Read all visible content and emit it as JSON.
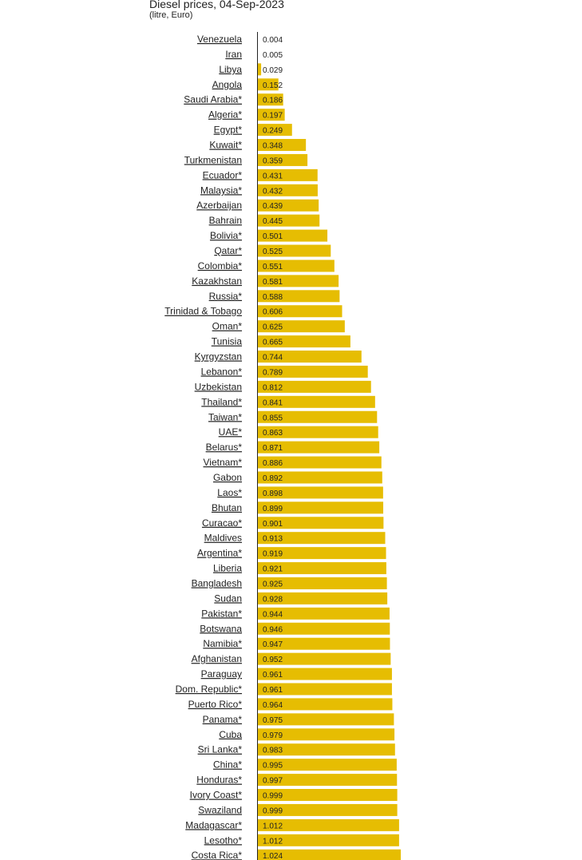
{
  "chart_data": {
    "type": "bar",
    "orientation": "horizontal",
    "title": "Diesel prices, 04-Sep-2023",
    "subtitle": "(litre, Euro)",
    "bar_color": "#e6bd02",
    "categories": [
      "Venezuela",
      "Iran",
      "Libya",
      "Angola",
      "Saudi Arabia*",
      "Algeria*",
      "Egypt*",
      "Kuwait*",
      "Turkmenistan",
      "Ecuador*",
      "Malaysia*",
      "Azerbaijan",
      "Bahrain",
      "Bolivia*",
      "Qatar*",
      "Colombia*",
      "Kazakhstan",
      "Russia*",
      "Trinidad & Tobago",
      "Oman*",
      "Tunisia",
      "Kyrgyzstan",
      "Lebanon*",
      "Uzbekistan",
      "Thailand*",
      "Taiwan*",
      "UAE*",
      "Belarus*",
      "Vietnam*",
      "Gabon",
      "Laos*",
      "Bhutan",
      "Curacao*",
      "Maldives",
      "Argentina*",
      "Liberia",
      "Bangladesh",
      "Sudan",
      "Pakistan*",
      "Botswana",
      "Namibia*",
      "Afghanistan",
      "Paraguay",
      "Dom. Republic*",
      "Puerto Rico*",
      "Panama*",
      "Cuba",
      "Sri Lanka*",
      "China*",
      "Honduras*",
      "Ivory Coast*",
      "Swaziland",
      "Madagascar*",
      "Lesotho*",
      "Costa Rica*"
    ],
    "values": [
      0.004,
      0.005,
      0.029,
      0.152,
      0.186,
      0.197,
      0.249,
      0.348,
      0.359,
      0.431,
      0.432,
      0.439,
      0.445,
      0.501,
      0.525,
      0.551,
      0.581,
      0.588,
      0.606,
      0.625,
      0.665,
      0.744,
      0.789,
      0.812,
      0.841,
      0.855,
      0.863,
      0.871,
      0.886,
      0.892,
      0.898,
      0.899,
      0.901,
      0.913,
      0.919,
      0.921,
      0.925,
      0.928,
      0.944,
      0.946,
      0.947,
      0.952,
      0.961,
      0.961,
      0.964,
      0.975,
      0.979,
      0.983,
      0.995,
      0.997,
      0.999,
      0.999,
      1.012,
      1.012,
      1.024
    ],
    "value_labels": [
      "0.004",
      "0.005",
      "0.029",
      "0.152",
      "0.186",
      "0.197",
      "0.249",
      "0.348",
      "0.359",
      "0.431",
      "0.432",
      "0.439",
      "0.445",
      "0.501",
      "0.525",
      "0.551",
      "0.581",
      "0.588",
      "0.606",
      "0.625",
      "0.665",
      "0.744",
      "0.789",
      "0.812",
      "0.841",
      "0.855",
      "0.863",
      "0.871",
      "0.886",
      "0.892",
      "0.898",
      "0.899",
      "0.901",
      "0.913",
      "0.919",
      "0.921",
      "0.925",
      "0.928",
      "0.944",
      "0.946",
      "0.947",
      "0.952",
      "0.961",
      "0.961",
      "0.964",
      "0.975",
      "0.979",
      "0.983",
      "0.995",
      "0.997",
      "0.999",
      "0.999",
      "1.012",
      "1.012",
      "1.024"
    ],
    "xlim": [
      0,
      1.024
    ],
    "grid": false,
    "legend": "none"
  }
}
